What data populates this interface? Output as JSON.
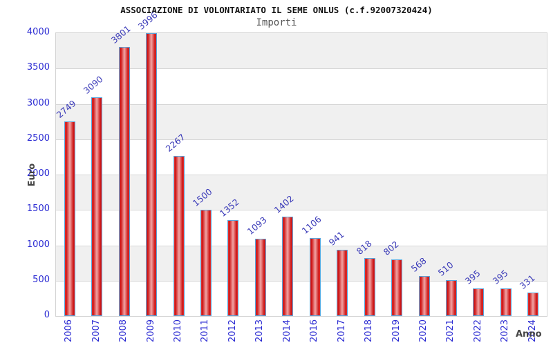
{
  "chart_data": {
    "type": "bar",
    "title": "ASSOCIAZIONE DI VOLONTARIATO IL SEME ONLUS (c.f.92007320424)",
    "subtitle": "Importi",
    "xlabel": "Anno",
    "ylabel": "Euro",
    "categories": [
      "2006",
      "2007",
      "2008",
      "2009",
      "2010",
      "2011",
      "2012",
      "2013",
      "2014",
      "2016",
      "2017",
      "2018",
      "2019",
      "2020",
      "2021",
      "2022",
      "2023",
      "2024"
    ],
    "values": [
      2749,
      3090,
      3801,
      3996,
      2267,
      1500,
      1352,
      1093,
      1402,
      1106,
      941,
      818,
      802,
      568,
      510,
      395,
      395,
      331
    ],
    "ylim": [
      0,
      4000
    ],
    "yticks": [
      0,
      500,
      1000,
      1500,
      2000,
      2500,
      3000,
      3500,
      4000
    ],
    "grid": "horizontal-bands",
    "legend": "none",
    "bar_labels_rotation_deg": -40,
    "x_tick_rotation_deg": -90
  },
  "colors": {
    "title": "#111111",
    "subtitle": "#555555",
    "axis_title": "#444444",
    "tick_label": "#2a2ad2",
    "value_label": "#3a3ab8",
    "bar_fill_main": "#cc1111",
    "bar_fill_highlight": "#f2a5a5",
    "bar_border": "#58a6dd",
    "band_gray": "#f0f0f0",
    "band_white": "#ffffff",
    "grid_line": "#d6d6d6"
  }
}
